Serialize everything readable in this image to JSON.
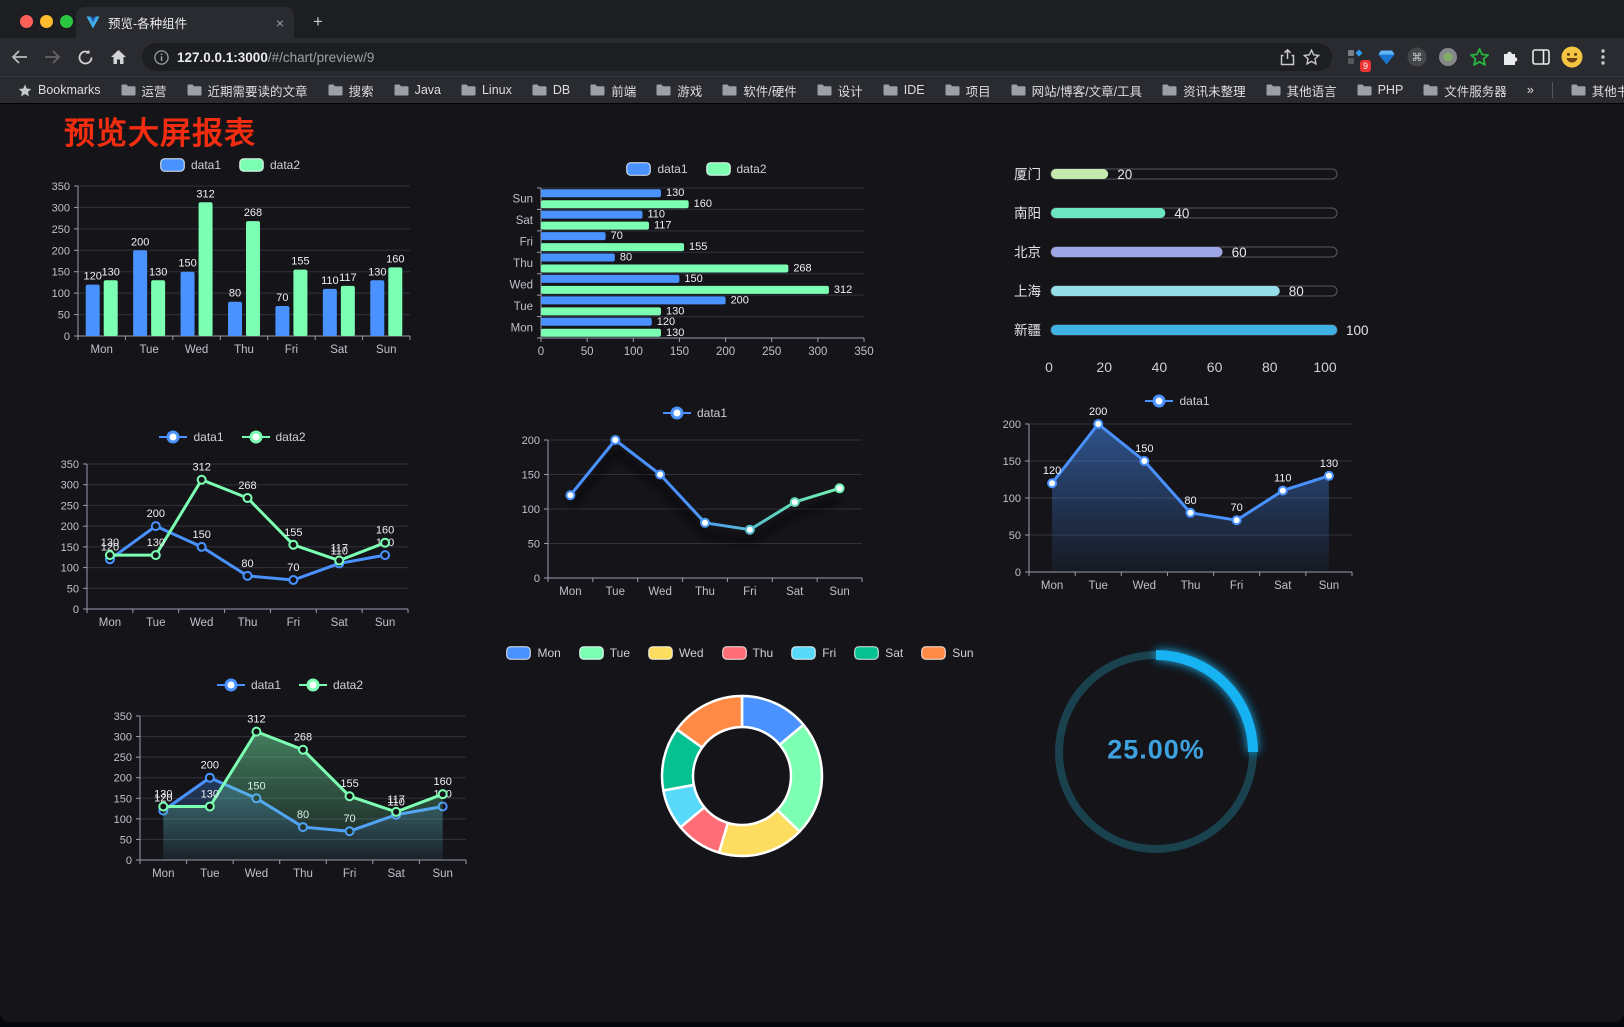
{
  "browser": {
    "tab_title": "预览-各种组件",
    "new_tab": "+",
    "close_glyph": "×",
    "url_host": "127.0.0.1:3000",
    "url_path": "/#/chart/preview/9",
    "extension_badge": "9",
    "bookmarks_label": "Bookmarks",
    "bookmark_folders": [
      "运营",
      "近期需要读的文章",
      "搜索",
      "Java",
      "Linux",
      "DB",
      "前端",
      "游戏",
      "软件/硬件",
      "设计",
      "IDE",
      "项目",
      "网站/博客/文章/工具",
      "资讯未整理",
      "其他语言",
      "PHP",
      "文件服务器"
    ],
    "overflow_chevron": "»",
    "other_bookmarks": "其他书签"
  },
  "page": {
    "title": "预览大屏报表"
  },
  "colors": {
    "data1_blue": "#4992ff",
    "data2_green": "#7cffb2",
    "title_red": "#f42d11",
    "gauge_blue": "#16b2f2"
  },
  "chart_data": [
    {
      "id": "bar-vertical",
      "type": "bar",
      "categories": [
        "Mon",
        "Tue",
        "Wed",
        "Thu",
        "Fri",
        "Sat",
        "Sun"
      ],
      "series": [
        {
          "name": "data1",
          "color": "#4992ff",
          "values": [
            120,
            200,
            150,
            80,
            70,
            110,
            130
          ]
        },
        {
          "name": "data2",
          "color": "#7cffb2",
          "values": [
            130,
            130,
            312,
            268,
            155,
            117,
            160
          ]
        }
      ],
      "ylim": [
        0,
        350
      ],
      "ytick": 50,
      "grid": true,
      "legend_position": "top"
    },
    {
      "id": "bar-horizontal",
      "type": "hbar",
      "categories": [
        "Mon",
        "Tue",
        "Wed",
        "Thu",
        "Fri",
        "Sat",
        "Sun"
      ],
      "series": [
        {
          "name": "data1",
          "color": "#4992ff",
          "values": [
            120,
            200,
            150,
            80,
            70,
            110,
            130
          ]
        },
        {
          "name": "data2",
          "color": "#7cffb2",
          "values": [
            130,
            130,
            312,
            268,
            155,
            117,
            160
          ]
        }
      ],
      "xlim": [
        0,
        350
      ],
      "xtick": 50,
      "grid": true,
      "legend_position": "top"
    },
    {
      "id": "progress-bars",
      "type": "progress",
      "categories": [
        "厦门",
        "南阳",
        "北京",
        "上海",
        "新疆"
      ],
      "values": [
        20,
        40,
        60,
        80,
        100
      ],
      "colors": [
        "#c4ebad",
        "#6be6c1",
        "#a0a7e6",
        "#96dee8",
        "#3fb1e3"
      ],
      "xlim": [
        0,
        100
      ],
      "xticks": [
        0,
        20,
        40,
        60,
        80,
        100
      ]
    },
    {
      "id": "line-basic",
      "type": "line",
      "categories": [
        "Mon",
        "Tue",
        "Wed",
        "Thu",
        "Fri",
        "Sat",
        "Sun"
      ],
      "series": [
        {
          "name": "data1",
          "color": "#4992ff",
          "values": [
            120,
            200,
            150,
            80,
            70,
            110,
            130
          ]
        },
        {
          "name": "data2",
          "color": "#7cffb2",
          "values": [
            130,
            130,
            312,
            268,
            155,
            117,
            160
          ]
        }
      ],
      "ylim": [
        0,
        350
      ],
      "ytick": 50,
      "grid": true,
      "legend_position": "top"
    },
    {
      "id": "line-gradient",
      "type": "line",
      "categories": [
        "Mon",
        "Tue",
        "Wed",
        "Thu",
        "Fri",
        "Sat",
        "Sun"
      ],
      "series": [
        {
          "name": "data1",
          "gradient": [
            "#4992ff",
            "#4992ff",
            "#5fd6b9",
            "#7cffb2"
          ],
          "values": [
            120,
            200,
            150,
            80,
            70,
            110,
            130
          ]
        }
      ],
      "ylim": [
        0,
        200
      ],
      "ytick": 50,
      "grid": true,
      "legend_position": "top"
    },
    {
      "id": "line-area",
      "type": "line",
      "categories": [
        "Mon",
        "Tue",
        "Wed",
        "Thu",
        "Fri",
        "Sat",
        "Sun"
      ],
      "series": [
        {
          "name": "data1",
          "color": "#4992ff",
          "area": true,
          "values": [
            120,
            200,
            150,
            80,
            70,
            110,
            130
          ]
        }
      ],
      "ylim": [
        0,
        200
      ],
      "ytick": 50,
      "grid": true,
      "legend_position": "top"
    },
    {
      "id": "line-area-two",
      "type": "line",
      "categories": [
        "Mon",
        "Tue",
        "Wed",
        "Thu",
        "Fri",
        "Sat",
        "Sun"
      ],
      "series": [
        {
          "name": "data1",
          "color": "#4992ff",
          "area": true,
          "values": [
            120,
            200,
            150,
            80,
            70,
            110,
            130
          ]
        },
        {
          "name": "data2",
          "color": "#7cffb2",
          "area": true,
          "values": [
            130,
            130,
            312,
            268,
            155,
            117,
            160
          ]
        }
      ],
      "ylim": [
        0,
        350
      ],
      "ytick": 50,
      "grid": true,
      "legend_position": "top"
    },
    {
      "id": "donut",
      "type": "pie",
      "labels": [
        "Mon",
        "Tue",
        "Wed",
        "Thu",
        "Fri",
        "Sat",
        "Sun"
      ],
      "values": [
        120,
        200,
        150,
        80,
        70,
        110,
        130
      ],
      "colors": [
        "#4992ff",
        "#7cffb2",
        "#fddd60",
        "#ff6e76",
        "#58d9f9",
        "#05c091",
        "#ff8a45"
      ],
      "legend_position": "top",
      "inner_radius": 49,
      "outer_radius": 80
    },
    {
      "id": "gauge",
      "type": "gauge",
      "value": 25,
      "max": 100,
      "center_text": "25.00%",
      "color": "#16b2f2",
      "track_color": "#1a414e"
    }
  ]
}
